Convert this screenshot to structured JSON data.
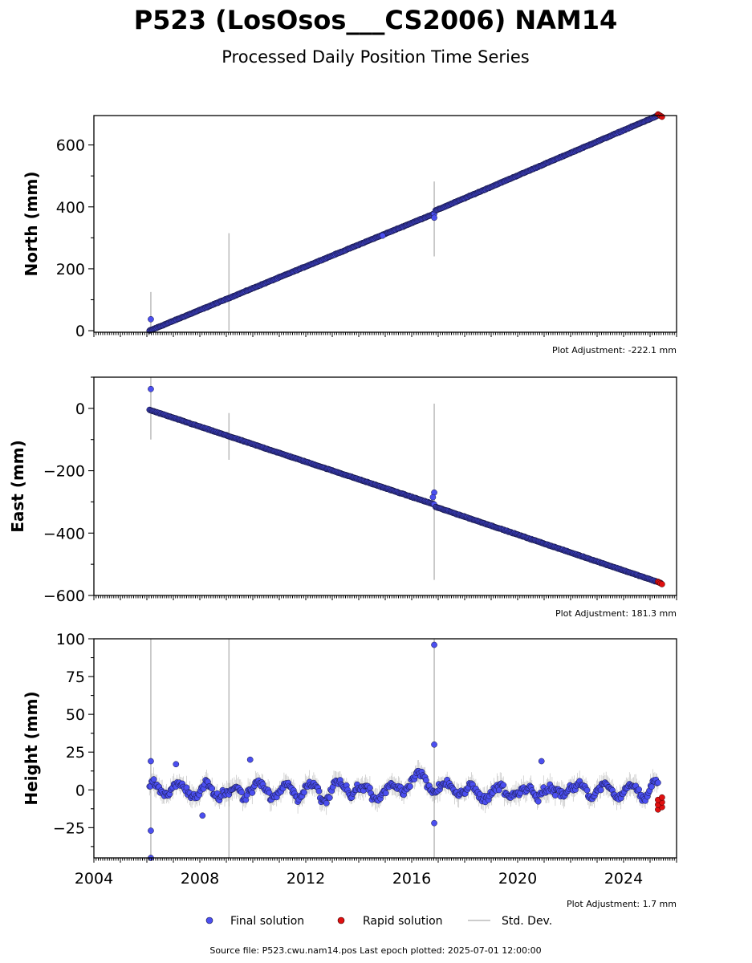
{
  "figure": {
    "title": "P523 (LosOsos___CS2006) NAM14",
    "subtitle": "Processed Daily Position Time Series",
    "footer": "Source file: P523.cwu.nam14.pos  Last epoch plotted: 2025-07-01 12:00:00"
  },
  "legend": {
    "final_label": "Final solution",
    "rapid_label": "Rapid solution",
    "std_label": "Std. Dev."
  },
  "colors": {
    "final_fill": "#4b4ff0",
    "final_edge": "#14143c",
    "rapid_fill": "#e01010",
    "std_line": "#bbbbbb"
  },
  "chart_data": [
    {
      "type": "scatter",
      "ylabel": "North (mm)",
      "xlim": [
        2004,
        2026
      ],
      "ylim": [
        -5,
        695
      ],
      "yticks": [
        0,
        200,
        400,
        600
      ],
      "xticks": [
        2004,
        2008,
        2012,
        2016,
        2020,
        2024
      ],
      "adjustment": "Plot Adjustment: -222.1 mm",
      "trend": {
        "x": [
          2006.1,
          2016.85,
          2016.9,
          2025.3
        ],
        "y": [
          0,
          378,
          388,
          695
        ]
      },
      "outliers": [
        {
          "x": 2006.15,
          "y": 37
        },
        {
          "x": 2016.85,
          "y": 365
        },
        {
          "x": 2014.9,
          "y": 307
        }
      ],
      "std_spikes": [
        {
          "x": 2006.15,
          "low": -5,
          "high": 125
        },
        {
          "x": 2009.1,
          "low": 0,
          "high": 315
        },
        {
          "x": 2016.85,
          "low": 240,
          "high": 482
        }
      ],
      "rapid": {
        "x_start": 2025.3,
        "x_end": 2025.45,
        "y": 695
      }
    },
    {
      "type": "scatter",
      "ylabel": "East (mm)",
      "xlim": [
        2004,
        2026
      ],
      "ylim": [
        -600,
        100
      ],
      "yticks": [
        0,
        -200,
        -400,
        -600
      ],
      "xticks": [
        2004,
        2008,
        2012,
        2016,
        2020,
        2024
      ],
      "adjustment": "Plot Adjustment: 181.3 mm",
      "trend": {
        "x": [
          2006.1,
          2016.85,
          2016.9,
          2025.4
        ],
        "y": [
          -5,
          -308,
          -316,
          -560
        ]
      },
      "outliers": [
        {
          "x": 2006.15,
          "y": 62
        },
        {
          "x": 2016.85,
          "y": -270
        },
        {
          "x": 2016.8,
          "y": -285
        }
      ],
      "std_spikes": [
        {
          "x": 2006.15,
          "low": -100,
          "high": 100
        },
        {
          "x": 2009.1,
          "low": -165,
          "high": -15
        },
        {
          "x": 2016.85,
          "low": -550,
          "high": 15
        }
      ],
      "rapid": {
        "x_start": 2025.3,
        "x_end": 2025.45,
        "y": -560
      }
    },
    {
      "type": "scatter",
      "ylabel": "Height (mm)",
      "xlim": [
        2004,
        2026
      ],
      "ylim": [
        -45,
        100
      ],
      "yticks": [
        100,
        75,
        50,
        25,
        0,
        -25
      ],
      "xticks": [
        2004,
        2008,
        2012,
        2016,
        2020,
        2024
      ],
      "xtick_labels": [
        "2004",
        "2008",
        "2012",
        "2016",
        "2020",
        "2024"
      ],
      "adjustment": "Plot Adjustment: 1.7 mm",
      "noise_range": [
        -15,
        15
      ],
      "outliers": [
        {
          "x": 2006.15,
          "y": 19
        },
        {
          "x": 2006.15,
          "y": -27
        },
        {
          "x": 2006.15,
          "y": -45
        },
        {
          "x": 2009.9,
          "y": 20
        },
        {
          "x": 2016.85,
          "y": 96
        },
        {
          "x": 2016.85,
          "y": 30
        },
        {
          "x": 2016.85,
          "y": -22
        },
        {
          "x": 2020.9,
          "y": 19
        },
        {
          "x": 2007.1,
          "y": 17
        },
        {
          "x": 2008.1,
          "y": -17
        }
      ],
      "std_spikes": [
        {
          "x": 2006.15,
          "low": -45,
          "high": 100
        },
        {
          "x": 2009.1,
          "low": -45,
          "high": 100
        },
        {
          "x": 2016.85,
          "low": -45,
          "high": 100
        }
      ],
      "rapid": {
        "x_start": 2025.3,
        "x_end": 2025.45,
        "y_low": -13,
        "y_high": -5
      }
    }
  ]
}
